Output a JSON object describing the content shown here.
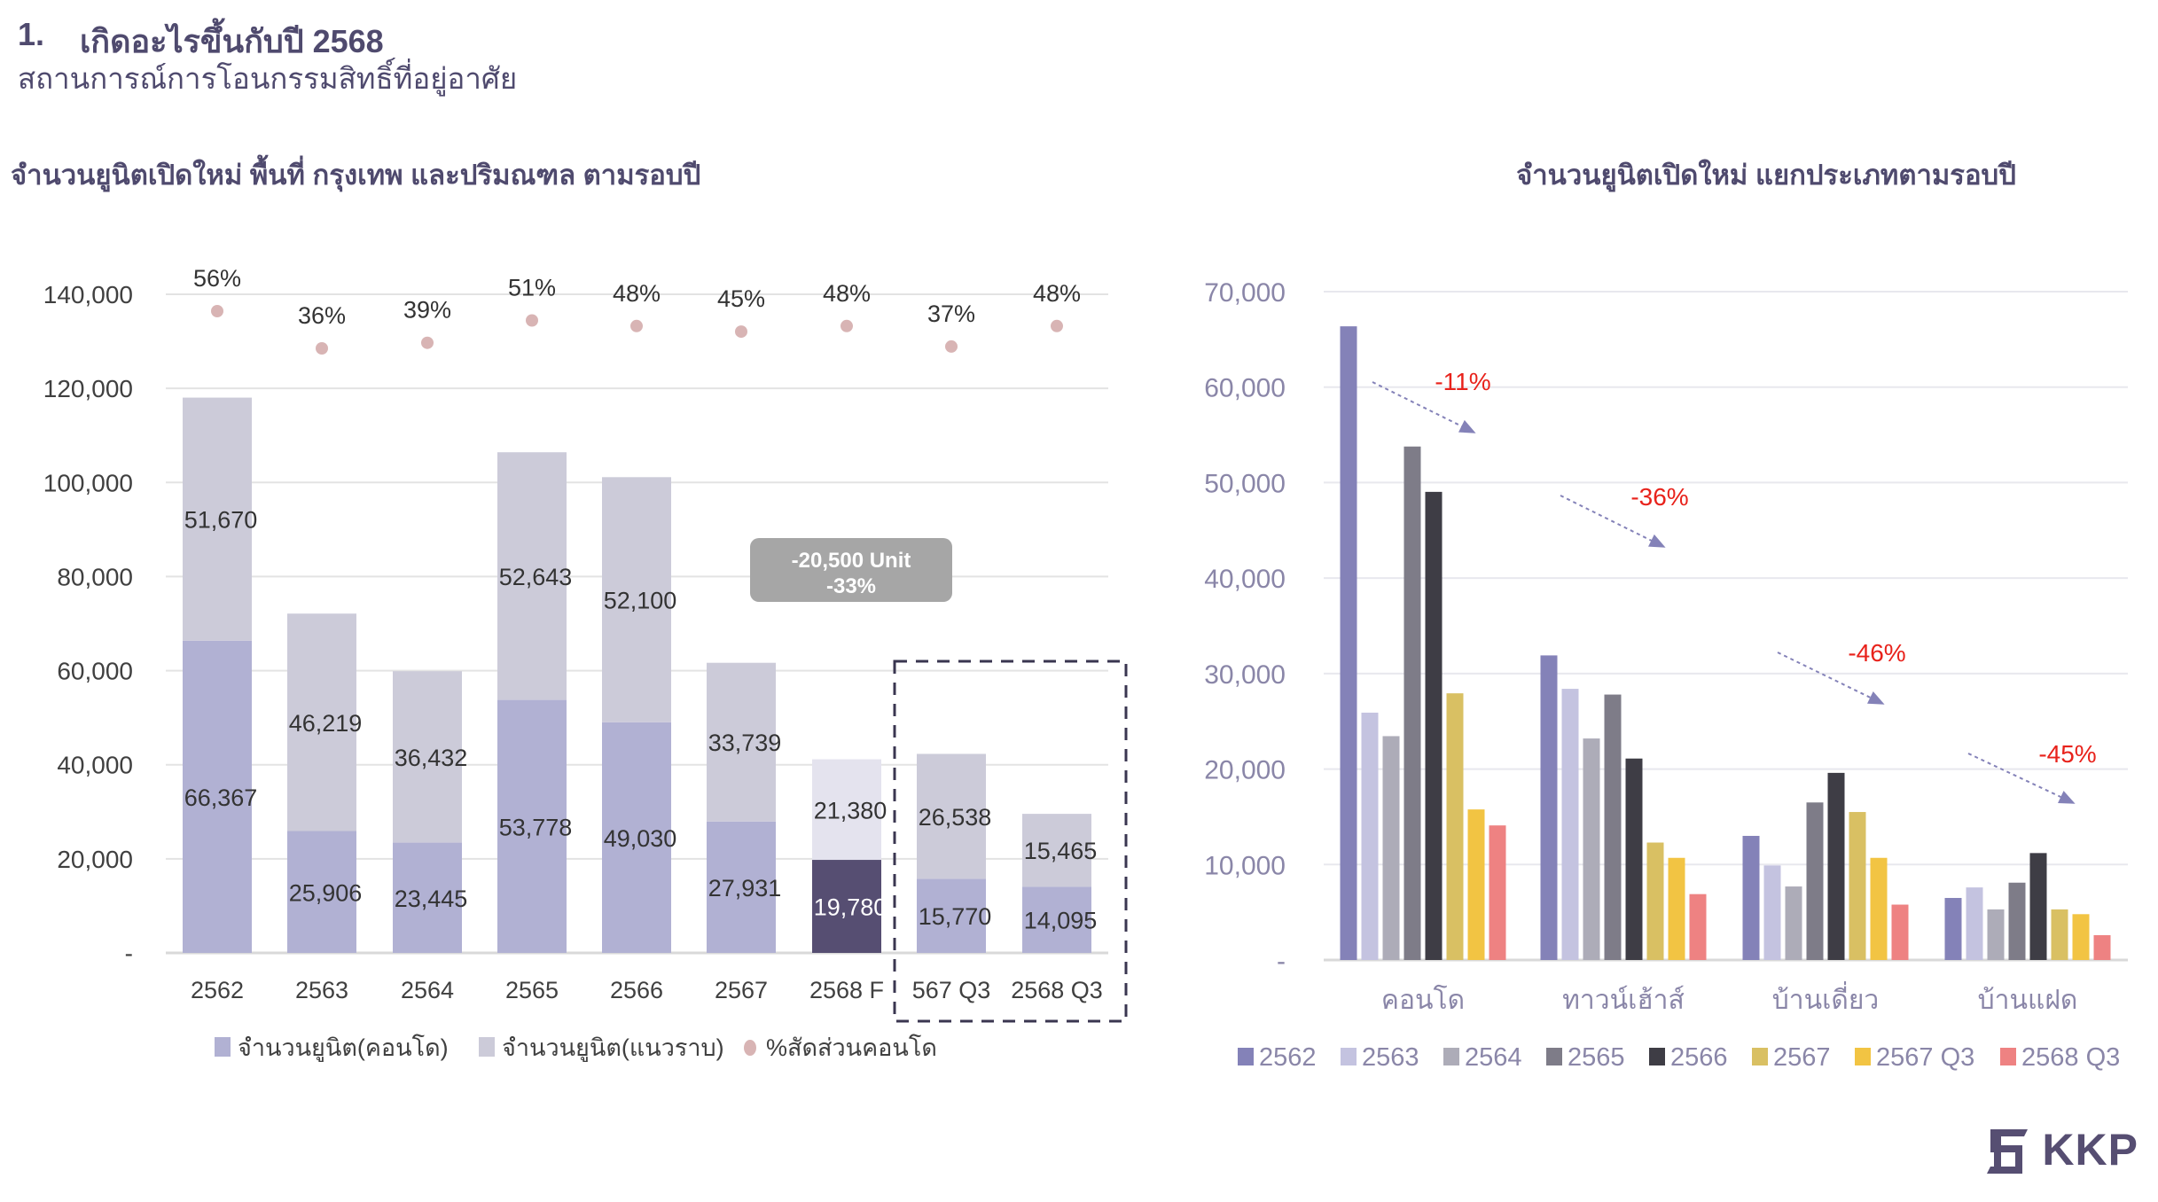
{
  "header": {
    "number": "1.",
    "title": "เกิดอะไรขึ้นกับปี 2568",
    "subtitle": "สถานการณ์การโอนกรรมสิทธิ์ที่อยู่อาศัย"
  },
  "logo": {
    "text": "KKP"
  },
  "colors": {
    "condo": "#b1b1d3",
    "horizontal": "#cccbd9",
    "condo_forecast": "#564e72",
    "horizontal_forecast": "#e4e3ee",
    "pct_dot": "#d8b4b4",
    "annotation": "#e8221b",
    "arrow": "#8482b8",
    "title": "#4f4a6e"
  },
  "chart_data": [
    {
      "type": "bar",
      "stacked": true,
      "title": "จำนวนยูนิตเปิดใหม่ พื้นที่ กรุงเทพ และปริมณฑล ตามรอบปี",
      "categories": [
        "2562",
        "2563",
        "2564",
        "2565",
        "2566",
        "2567",
        "2568 F",
        "567 Q3",
        "2568 Q3"
      ],
      "series": [
        {
          "name": "จำนวนยูนิต(คอนโด)",
          "values": [
            66367,
            25906,
            23445,
            53778,
            49030,
            27931,
            19780,
            15770,
            14095
          ],
          "labels": [
            "66,367",
            "25,906",
            "23,445",
            "53,778",
            "49,030",
            "27,931",
            "19,780",
            "15,770",
            "14,095"
          ]
        },
        {
          "name": "จำนวนยูนิต(แนวราบ)",
          "values": [
            51670,
            46219,
            36432,
            52643,
            52100,
            33739,
            21380,
            26538,
            15465
          ],
          "labels": [
            "51,670",
            "46,219",
            "36,432",
            "52,643",
            "52,100",
            "33,739",
            "21,380",
            "26,538",
            "15,465"
          ]
        },
        {
          "name": "%สัดส่วนคอนโด",
          "type": "scatter",
          "values": [
            56,
            36,
            39,
            51,
            48,
            45,
            48,
            37,
            48
          ],
          "labels": [
            "56%",
            "36%",
            "39%",
            "51%",
            "48%",
            "45%",
            "48%",
            "37%",
            "48%"
          ]
        }
      ],
      "yticks": [
        "-",
        "20,000",
        "40,000",
        "60,000",
        "80,000",
        "100,000",
        "120,000",
        "140,000"
      ],
      "ylim": [
        0,
        140000
      ],
      "callout": {
        "line1": "-20,500 Unit",
        "line2": "-33%"
      },
      "legend_position": "bottom"
    },
    {
      "type": "bar",
      "title": "จำนวนยูนิตเปิดใหม่ แยกประเภทตามรอบปี",
      "categories": [
        "คอนโด",
        "ทาวน์เฮ้าส์",
        "บ้านเดี่ยว",
        "บ้านแฝด"
      ],
      "series": [
        {
          "name": "2562",
          "color": "#8482b8",
          "values": [
            66367,
            31900,
            13000,
            6500
          ]
        },
        {
          "name": "2563",
          "color": "#c4c3e0",
          "values": [
            25906,
            28400,
            9900,
            7600
          ]
        },
        {
          "name": "2564",
          "color": "#adacb8",
          "values": [
            23445,
            23200,
            7700,
            5300
          ]
        },
        {
          "name": "2565",
          "color": "#7e7c88",
          "values": [
            53778,
            27800,
            16500,
            8100
          ]
        },
        {
          "name": "2566",
          "color": "#3e3d45",
          "values": [
            49030,
            21100,
            19600,
            11200
          ]
        },
        {
          "name": "2567",
          "color": "#d9c063",
          "values": [
            27931,
            12300,
            15500,
            5300
          ]
        },
        {
          "name": "2567 Q3",
          "color": "#f2c443",
          "values": [
            15770,
            10700,
            10700,
            4800
          ]
        },
        {
          "name": "2568 Q3",
          "color": "#ee8282",
          "values": [
            14095,
            6900,
            5800,
            2600
          ]
        }
      ],
      "annotations": [
        "-11%",
        "-36%",
        "-46%",
        "-45%"
      ],
      "yticks": [
        "-",
        "10,000",
        "20,000",
        "30,000",
        "40,000",
        "50,000",
        "60,000",
        "70,000"
      ],
      "ylim": [
        0,
        70000
      ],
      "legend_position": "bottom"
    }
  ]
}
